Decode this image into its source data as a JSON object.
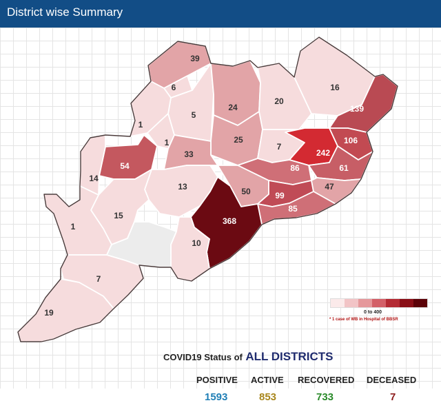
{
  "header": {
    "title": "District wise Summary"
  },
  "map": {
    "districts": [
      {
        "label": "39"
      },
      {
        "label": "6"
      },
      {
        "label": "5"
      },
      {
        "label": "24"
      },
      {
        "label": "20"
      },
      {
        "label": "16"
      },
      {
        "label": "139"
      },
      {
        "label": "1"
      },
      {
        "label": "1"
      },
      {
        "label": "25"
      },
      {
        "label": "7"
      },
      {
        "label": "242"
      },
      {
        "label": "106"
      },
      {
        "label": "54"
      },
      {
        "label": "33"
      },
      {
        "label": "86"
      },
      {
        "label": "61"
      },
      {
        "label": "14"
      },
      {
        "label": "13"
      },
      {
        "label": "50"
      },
      {
        "label": "99"
      },
      {
        "label": "47"
      },
      {
        "label": "85"
      },
      {
        "label": "15"
      },
      {
        "label": "368"
      },
      {
        "label": "1"
      },
      {
        "label": "10"
      },
      {
        "label": "7"
      },
      {
        "label": "19"
      },
      {
        "label": ""
      }
    ]
  },
  "legend": {
    "colors": [
      "#fbeaea",
      "#f2c4c6",
      "#e5989b",
      "#d36068",
      "#b42a33",
      "#8a0e16",
      "#5c0208"
    ],
    "range": "0 to 400",
    "note": "* 1 case of WB in Hospital of BBSR"
  },
  "status": {
    "title_prefix": "COVID19 Status of",
    "title_strong": "ALL DISTRICTS",
    "labels": {
      "positive": "POSITIVE",
      "active": "ACTIVE",
      "recovered": "RECOVERED",
      "deceased": "DECEASED"
    },
    "values": {
      "positive": "1593",
      "active": "853",
      "recovered": "733",
      "deceased": "7"
    },
    "colors": {
      "positive": "#1f7fb6",
      "active": "#a8861c",
      "recovered": "#2a8a2a",
      "deceased": "#8c1c1c"
    }
  }
}
